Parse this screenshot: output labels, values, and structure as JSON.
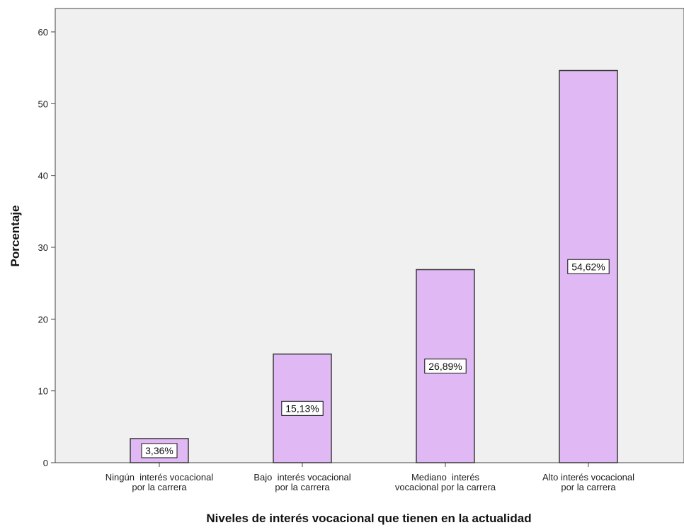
{
  "colors": {
    "bar_fill": "#dfb8f4",
    "bar_stroke": "#3a3a3a",
    "plot_background": "#f0f0f0",
    "axis": "#444444",
    "label_box_fill": "#ffffff"
  },
  "chart_data": {
    "type": "bar",
    "title": "",
    "xlabel": "Niveles de interés vocacional que tienen en la actualidad",
    "ylabel": "Porcentaje",
    "ylim": [
      0,
      60
    ],
    "yticks": [
      0,
      10,
      20,
      30,
      40,
      50,
      60
    ],
    "yticks_text": [
      "0",
      "10",
      "20",
      "30",
      "40",
      "50",
      "60"
    ],
    "grid": false,
    "categories": [
      [
        "Ningún  interés vocacional",
        "por la carrera"
      ],
      [
        "Bajo  interés vocacional",
        "por la carrera"
      ],
      [
        "Mediano  interés",
        "vocacional por la carrera"
      ],
      [
        "Alto interés vocacional",
        "por la carrera"
      ]
    ],
    "values": [
      3.36,
      15.13,
      26.89,
      54.62
    ],
    "data_labels": [
      "3,36%",
      "15,13%",
      "26,89%",
      "54,62%"
    ]
  }
}
